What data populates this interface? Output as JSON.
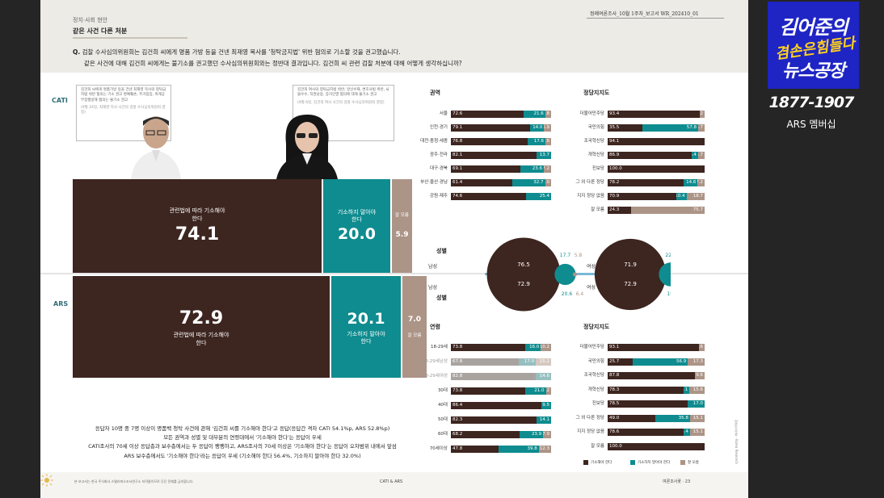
{
  "header": {
    "section": "정치·사회 현안",
    "title": "같은 사건 다른 처분",
    "report": "정례여론조사_10월 1주차_보고서    WR_202410_01"
  },
  "question": {
    "prefix": "Q.",
    "line1": "검찰 수사심의위원회는 김건희 씨에게 명품 가방 등을 건넨 최재영 목사를 '청탁금지법' 위반 혐의로 기소할 것을 권고했습니다.",
    "line2": "같은 사건에 대해 김건희 씨에게는 불기소를 권고했던 수사심의위원회와는 정반대 결과입니다. 김건희 씨 관련 검찰 처분에 대해 어떻게 생각하십니까?"
  },
  "labels": {
    "cati": "CATI",
    "ars": "ARS"
  },
  "notes": {
    "left": "김건희 씨에게 명품가방 등을 건넨 최재영 목사의 청탁금지법 위반 혐의는 기소 권고 명예훼손, 주거침입, 위계공무집행방해 혐의는 불기소 권고",
    "left_src": "(9월 24일, 최재영 목사 사건의 검찰 수사심의위원회 결정)",
    "right": "김건희 여사의 청탁금지법 위반, 알선수재, 변호사법 위반, 뇌물수수, 직권남용, 증거인멸 혐의에 대해 불기소 권고",
    "right_src": "(9월 6일, 김건희 여사 사건의 검찰 수사심의위원회 결정)"
  },
  "cati_summary": {
    "ind_label": "관련법에 따라 기소해야 한다",
    "ind": "74.1",
    "not_label": "기소하지 말아야 한다",
    "not": "20.0",
    "dk_label": "잘 모름",
    "dk": "5.9"
  },
  "ars_summary": {
    "ind_label": "관련법에 따라 기소해야 한다",
    "ind": "72.9",
    "not_label": "기소하지 말아야 한다",
    "not": "20.1",
    "dk_label": "잘 모름",
    "dk": "7.0"
  },
  "summary_text": [
    "응답자 10명 중 7명 이상이 명품백 청탁 사건에 관해 '김건희 씨를 기소해야 한다'고 응답(응답간 격차 CATI 54.1%p, ARS 52.8%p)",
    "모든 권역과 성별 및 대부분의 연령대에서 '기소해야 한다'는 응답이 우세",
    "CATI조사의 70세 이상 응답층과 보수층에서는 두 응답이 팽팽하고, ARS조사의 70세 이상은 '기소해야 한다'는 응답이 오차범위 내에서 앞섬",
    "ARS 보수층에서도 '기소해야 한다'라는 응답이 우세 (기소해야 한다 56.4%, 기소하지 말아야 한다 32.0%)"
  ],
  "sections": {
    "region": "권역",
    "party_top": "정당지지도",
    "gender_top": "성별",
    "gender_bottom": "성별",
    "age": "연령",
    "party_bottom": "정당지지도"
  },
  "gender_labels": {
    "male": "남성",
    "female": "여성"
  },
  "legend": {
    "a": "기소해야 한다",
    "b": "기소하지 말아야 한다",
    "c": "잘 모름"
  },
  "footer": {
    "left": "본 보고서는 한국 주식회사 스텔라피스조사연구소 저작물이므로 무단 전재를 금지합니다.",
    "mid": "CATI & ARS",
    "right": "여론조사꽃 · 23",
    "vertical": "여론조사꽃 - Korea Research"
  },
  "overlay": {
    "logo_line1": "김어준의",
    "logo_line2": "겸손은힘들다",
    "logo_line3": "뉴스공장",
    "phone": "1877-1907",
    "member": "ARS 멤버십"
  },
  "colors": {
    "indict": "#3d2520",
    "no_indict": "#0f8c8f",
    "unknown": "#ac9487",
    "cati_label": "#2f6e78"
  },
  "chart_data": [
    {
      "type": "bar",
      "title": "CATI 권역",
      "categories": [
        "서울",
        "인천·경기",
        "대전·충청·세종",
        "광주·전라",
        "대구·경북",
        "부산·울산·경남",
        "강원·제주"
      ],
      "series": [
        {
          "name": "기소해야 한다",
          "values": [
            72.6,
            79.1,
            76.8,
            82.1,
            69.1,
            61.4,
            74.6
          ]
        },
        {
          "name": "기소하지 말아야 한다",
          "values": [
            21.6,
            14.0,
            17.6,
            13.7,
            23.6,
            32.7,
            25.4
          ]
        },
        {
          "name": "잘 모름",
          "values": [
            5.8,
            6.9,
            5.6,
            null,
            7.2,
            6.0,
            null
          ]
        }
      ]
    },
    {
      "type": "bar",
      "title": "CATI 정당지지도",
      "categories": [
        "더불어민주당",
        "국민의힘",
        "조국혁신당",
        "개혁신당",
        "진보당",
        "그 외 다른 정당",
        "지지 정당 없음",
        "잘 모름"
      ],
      "series": [
        {
          "name": "기소해야 한다",
          "values": [
            93.4,
            35.5,
            94.1,
            86.9,
            100.0,
            78.2,
            70.9,
            24.3
          ]
        },
        {
          "name": "기소하지 말아야 한다",
          "values": [
            null,
            57.8,
            null,
            6.4,
            null,
            14.6,
            10.4,
            null
          ]
        },
        {
          "name": "잘 모름",
          "values": [
            5.2,
            6.7,
            null,
            6.7,
            null,
            7.2,
            18.7,
            75.7
          ]
        }
      ]
    },
    {
      "type": "bar",
      "title": "CATI 성별",
      "categories": [
        "남성",
        "여성"
      ],
      "series": [
        {
          "name": "기소해야 한다",
          "values": [
            76.5,
            71.9
          ]
        },
        {
          "name": "기소하지 말아야 한다",
          "values": [
            17.7,
            22.2
          ]
        },
        {
          "name": "잘 모름",
          "values": [
            5.8,
            5.9
          ]
        }
      ]
    },
    {
      "type": "bar",
      "title": "ARS 성별",
      "categories": [
        "남성",
        "여성"
      ],
      "series": [
        {
          "name": "기소해야 한다",
          "values": [
            72.9,
            72.9
          ]
        },
        {
          "name": "기소하지 말아야 한다",
          "values": [
            20.6,
            19.6
          ]
        },
        {
          "name": "잘 모름",
          "values": [
            6.4,
            7.5
          ]
        }
      ]
    },
    {
      "type": "bar",
      "title": "ARS 연령",
      "categories": [
        "18-29세",
        "18-29세남성",
        "18-29세여성",
        "30대",
        "40대",
        "50대",
        "60대",
        "70세이상"
      ],
      "series": [
        {
          "name": "기소해야 한다",
          "values": [
            73.8,
            67.8,
            82.8,
            73.8,
            86.4,
            82.3,
            68.2,
            47.8
          ]
        },
        {
          "name": "기소하지 말아야 한다",
          "values": [
            16.0,
            17.0,
            14.6,
            21.0,
            9.5,
            14.1,
            23.9,
            39.8
          ]
        },
        {
          "name": "잘 모름",
          "values": [
            10.2,
            15.2,
            null,
            5.2,
            null,
            null,
            7.9,
            12.3
          ]
        }
      ]
    },
    {
      "type": "bar",
      "title": "ARS 정당지지도",
      "categories": [
        "더불어민주당",
        "국민의힘",
        "조국혁신당",
        "개혁신당",
        "진보당",
        "그 외 다른 정당",
        "지지 정당 없음",
        "잘 모름"
      ],
      "series": [
        {
          "name": "기소해야 한다",
          "values": [
            93.1,
            25.7,
            87.8,
            78.3,
            78.5,
            49.0,
            78.6,
            100.0
          ]
        },
        {
          "name": "기소하지 말아야 한다",
          "values": [
            null,
            56.9,
            null,
            6.1,
            17.0,
            35.8,
            6.4,
            null
          ]
        },
        {
          "name": "잘 모름",
          "values": [
            5.6,
            17.3,
            9.6,
            15.6,
            null,
            15.1,
            15.1,
            null
          ]
        }
      ]
    }
  ]
}
